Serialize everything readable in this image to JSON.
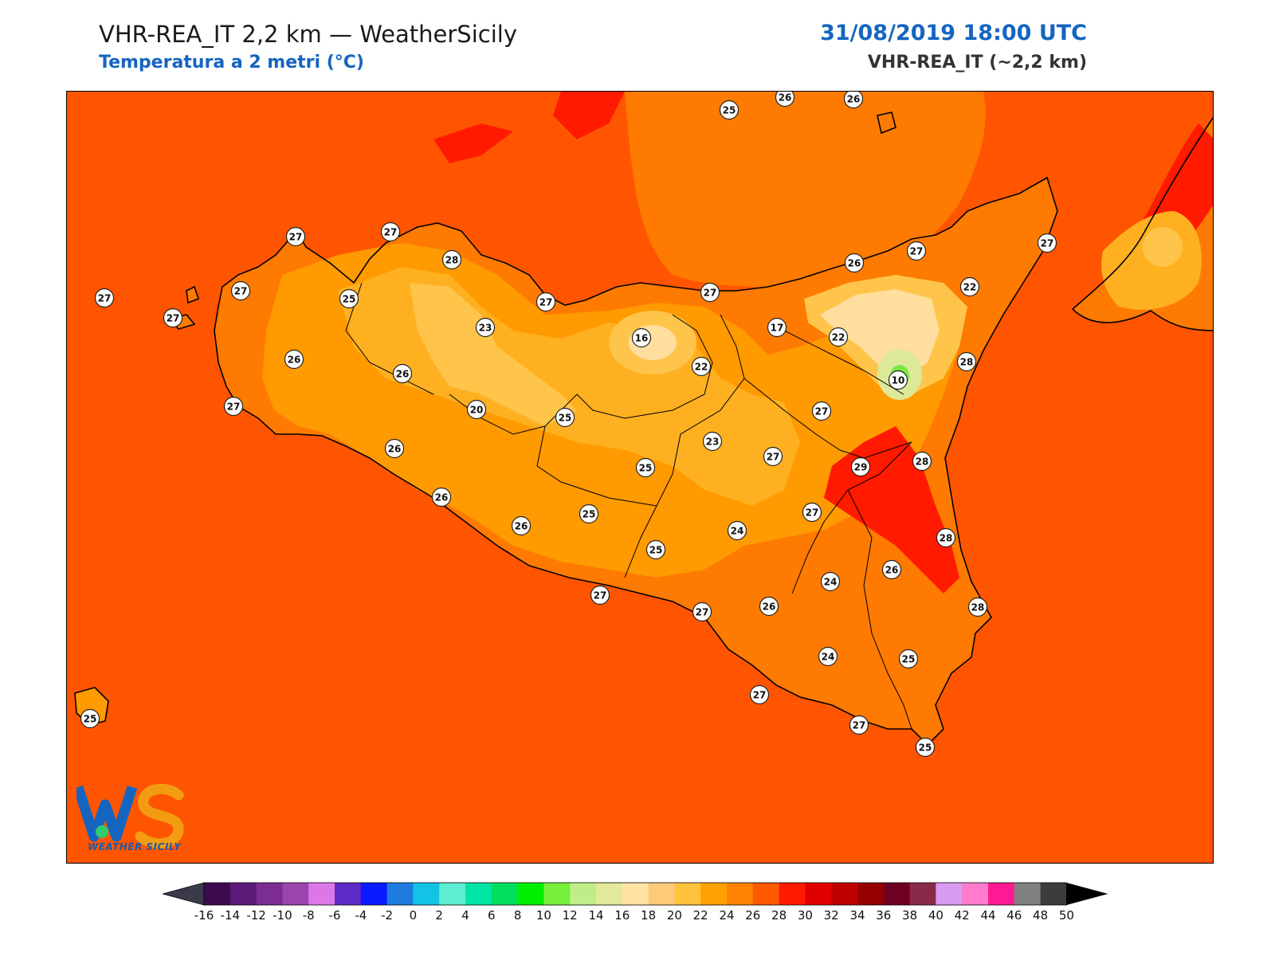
{
  "header": {
    "title": "VHR-REA_IT 2,2 km — WeatherSicily",
    "subtitle": "Temperatura a 2 metri (°C)",
    "datetime": "31/08/2019 18:00 UTC",
    "model": "VHR-REA_IT (~2,2 km)"
  },
  "logo": {
    "letters": "WS",
    "caption": "WEATHER SICILY"
  },
  "colors": {
    "sea": "#ff5500",
    "t26": "#ff7a00",
    "t24": "#ff9a00",
    "t22": "#ffb020",
    "t20": "#ffc44a",
    "t18": "#ffde9e",
    "t14": "#dde899",
    "t10": "#7ae844",
    "t30": "#ff1a00",
    "t32": "#e80000"
  },
  "colorbar": {
    "ticks": [
      "-16",
      "-14",
      "-12",
      "-10",
      "-8",
      "-6",
      "-4",
      "-2",
      "0",
      "2",
      "4",
      "6",
      "8",
      "10",
      "12",
      "14",
      "16",
      "18",
      "20",
      "22",
      "24",
      "26",
      "28",
      "30",
      "32",
      "34",
      "36",
      "38",
      "40",
      "42",
      "44",
      "46",
      "48",
      "50"
    ],
    "colors": [
      "#3b0a4f",
      "#5b1a78",
      "#7b2d93",
      "#9a44ad",
      "#dd77e8",
      "#5e2ac7",
      "#0b1bff",
      "#1e7be0",
      "#12c3e6",
      "#5eeed1",
      "#00e5a4",
      "#00df5e",
      "#00ef00",
      "#77ee3a",
      "#bfee88",
      "#e2e99a",
      "#ffe3a3",
      "#ffc97a",
      "#ffc23c",
      "#ffa100",
      "#ff8300",
      "#ff5900",
      "#ff1a00",
      "#e00000",
      "#c00000",
      "#960000",
      "#700020",
      "#8a2a4a",
      "#d89bf2",
      "#ff7bcc",
      "#ff1a93",
      "#808080",
      "#3c3c3c"
    ]
  },
  "stations": [
    {
      "name": "stn-1",
      "value": "27"
    },
    {
      "name": "stn-2",
      "value": "27"
    },
    {
      "name": "stn-3",
      "value": "27"
    },
    {
      "name": "stn-4",
      "value": "27"
    },
    {
      "name": "stn-5",
      "value": "28"
    },
    {
      "name": "stn-6",
      "value": "25"
    },
    {
      "name": "stn-7",
      "value": "26"
    },
    {
      "name": "stn-8",
      "value": "27"
    },
    {
      "name": "stn-9",
      "value": "23"
    },
    {
      "name": "stn-10",
      "value": "27"
    },
    {
      "name": "stn-11",
      "value": "26"
    },
    {
      "name": "stn-12",
      "value": "27"
    },
    {
      "name": "stn-13",
      "value": "20"
    },
    {
      "name": "stn-14",
      "value": "26"
    },
    {
      "name": "stn-15",
      "value": "25"
    },
    {
      "name": "stn-16",
      "value": "16"
    },
    {
      "name": "stn-17",
      "value": "27"
    },
    {
      "name": "stn-18",
      "value": "22"
    },
    {
      "name": "stn-19",
      "value": "17"
    },
    {
      "name": "stn-20",
      "value": "22"
    },
    {
      "name": "stn-21",
      "value": "26"
    },
    {
      "name": "stn-22",
      "value": "27"
    },
    {
      "name": "stn-23",
      "value": "22"
    },
    {
      "name": "stn-24",
      "value": "27"
    },
    {
      "name": "stn-25",
      "value": "10"
    },
    {
      "name": "stn-26",
      "value": "28"
    },
    {
      "name": "stn-27",
      "value": "27"
    },
    {
      "name": "stn-28",
      "value": "23"
    },
    {
      "name": "stn-29",
      "value": "25"
    },
    {
      "name": "stn-30",
      "value": "27"
    },
    {
      "name": "stn-31",
      "value": "29"
    },
    {
      "name": "stn-32",
      "value": "28"
    },
    {
      "name": "stn-33",
      "value": "26"
    },
    {
      "name": "stn-34",
      "value": "25"
    },
    {
      "name": "stn-35",
      "value": "26"
    },
    {
      "name": "stn-36",
      "value": "25"
    },
    {
      "name": "stn-37",
      "value": "27"
    },
    {
      "name": "stn-38",
      "value": "24"
    },
    {
      "name": "stn-39",
      "value": "27"
    },
    {
      "name": "stn-40",
      "value": "28"
    },
    {
      "name": "stn-41",
      "value": "26"
    },
    {
      "name": "stn-42",
      "value": "24"
    },
    {
      "name": "stn-43",
      "value": "26"
    },
    {
      "name": "stn-44",
      "value": "28"
    },
    {
      "name": "stn-45",
      "value": "27"
    },
    {
      "name": "stn-46",
      "value": "24"
    },
    {
      "name": "stn-47",
      "value": "25"
    },
    {
      "name": "stn-48",
      "value": "27"
    },
    {
      "name": "stn-49",
      "value": "27"
    },
    {
      "name": "stn-50",
      "value": "25"
    },
    {
      "name": "stn-51",
      "value": "25"
    },
    {
      "name": "stn-52",
      "value": "25"
    },
    {
      "name": "stn-53",
      "value": "26"
    },
    {
      "name": "stn-54",
      "value": "26"
    }
  ]
}
